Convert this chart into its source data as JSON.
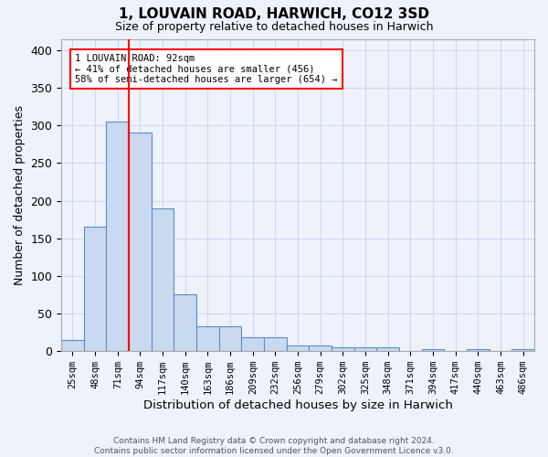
{
  "title": "1, LOUVAIN ROAD, HARWICH, CO12 3SD",
  "subtitle": "Size of property relative to detached houses in Harwich",
  "xlabel": "Distribution of detached houses by size in Harwich",
  "ylabel": "Number of detached properties",
  "footer_line1": "Contains HM Land Registry data © Crown copyright and database right 2024.",
  "footer_line2": "Contains public sector information licensed under the Open Government Licence v3.0.",
  "bin_labels": [
    "25sqm",
    "48sqm",
    "71sqm",
    "94sqm",
    "117sqm",
    "140sqm",
    "163sqm",
    "186sqm",
    "209sqm",
    "232sqm",
    "256sqm",
    "279sqm",
    "302sqm",
    "325sqm",
    "348sqm",
    "371sqm",
    "394sqm",
    "417sqm",
    "440sqm",
    "463sqm",
    "486sqm"
  ],
  "bar_heights": [
    15,
    165,
    305,
    290,
    190,
    75,
    33,
    33,
    19,
    19,
    8,
    8,
    5,
    5,
    5,
    0,
    3,
    0,
    3,
    0,
    3
  ],
  "bar_color": "#c9d9f0",
  "bar_edge_color": "#5a8dc8",
  "grid_color": "#d0d8f0",
  "background_color": "#eef2fb",
  "red_line_bin_index": 2,
  "annotation_text": "1 LOUVAIN ROAD: 92sqm\n← 41% of detached houses are smaller (456)\n58% of semi-detached houses are larger (654) →",
  "annotation_box_color": "white",
  "annotation_box_edge_color": "red",
  "ylim": [
    0,
    415
  ],
  "yticks": [
    0,
    50,
    100,
    150,
    200,
    250,
    300,
    350,
    400
  ],
  "title_fontsize": 11,
  "subtitle_fontsize": 9
}
